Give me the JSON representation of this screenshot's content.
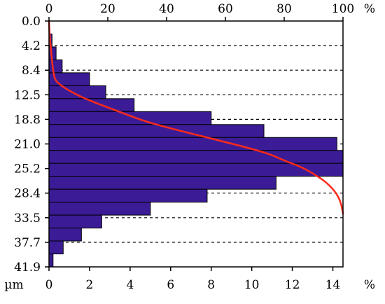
{
  "chart_data": {
    "type": "bar",
    "orientation": "horizontal",
    "y_label": "µm",
    "y_tick_labels": [
      "0.0",
      "4.2",
      "8.4",
      "12.5",
      "18.8",
      "21.0",
      "25.2",
      "28.4",
      "33.5",
      "37.7",
      "41.9"
    ],
    "x_bottom_label": "%",
    "x_bottom_ticks": [
      0,
      2,
      4,
      6,
      8,
      10,
      12,
      14
    ],
    "x_bottom_range": [
      0,
      14.5
    ],
    "x_top_label": "%",
    "x_top_ticks": [
      0,
      20,
      40,
      60,
      80,
      100
    ],
    "x_top_range": [
      0,
      100
    ],
    "bins": [
      {
        "value": 0.0
      },
      {
        "value": 0.15
      },
      {
        "value": 0.35
      },
      {
        "value": 0.65
      },
      {
        "value": 2.0
      },
      {
        "value": 2.8
      },
      {
        "value": 4.2
      },
      {
        "value": 8.0
      },
      {
        "value": 10.6
      },
      {
        "value": 14.2
      },
      {
        "value": 14.5
      },
      {
        "value": 14.5
      },
      {
        "value": 11.2
      },
      {
        "value": 7.8
      },
      {
        "value": 5.0
      },
      {
        "value": 2.6
      },
      {
        "value": 1.6
      },
      {
        "value": 0.7
      },
      {
        "value": 0.2
      }
    ],
    "cumulative_curve": [
      [
        0,
        0.0
      ],
      [
        1,
        0.2
      ],
      [
        2,
        0.6
      ],
      [
        3,
        1.0
      ],
      [
        4,
        1.6
      ],
      [
        4.5,
        2.2
      ],
      [
        5,
        5.0
      ],
      [
        5.5,
        9.0
      ],
      [
        6,
        14.0
      ],
      [
        6.5,
        20.0
      ],
      [
        7,
        26.0
      ],
      [
        7.5,
        32.0
      ],
      [
        8,
        40.0
      ],
      [
        8.5,
        49.0
      ],
      [
        9,
        58.0
      ],
      [
        9.5,
        67.0
      ],
      [
        10,
        75.0
      ],
      [
        10.5,
        80.0
      ],
      [
        11,
        86.0
      ],
      [
        11.5,
        90.0
      ],
      [
        12,
        93.5
      ],
      [
        12.5,
        96.0
      ],
      [
        13,
        97.8
      ],
      [
        13.5,
        99.0
      ],
      [
        14,
        99.6
      ],
      [
        14.5,
        100.0
      ]
    ],
    "colors": {
      "bars": "#3b1c96",
      "curve": "#ff2a1a",
      "grid": "#000000"
    }
  }
}
